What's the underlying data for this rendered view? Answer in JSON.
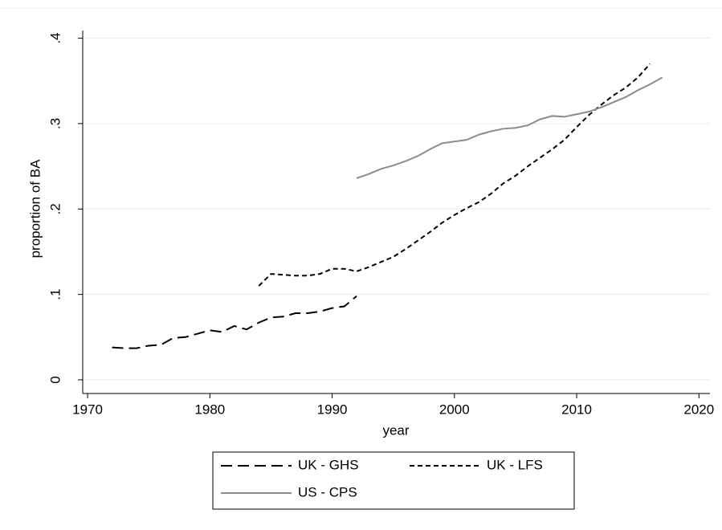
{
  "chart_data": {
    "type": "line",
    "x_label": "year",
    "y_label": "proportion of BA",
    "xlim": [
      1969.6,
      2020.9
    ],
    "xticks": [
      1970,
      1980,
      1990,
      2000,
      2010,
      2020
    ],
    "ylim": [
      -0.016,
      0.409
    ],
    "yticks": [
      0,
      {
        "value": 0.1,
        "label": ".1"
      },
      {
        "value": 0.2,
        "label": ".2"
      },
      {
        "value": 0.3,
        "label": ".3"
      },
      {
        "value": 0.4,
        "label": ".4"
      }
    ],
    "grid": true,
    "series": [
      {
        "name": "UK - GHS",
        "color": "#000000",
        "dash": "long",
        "x": [
          1972,
          1973,
          1974,
          1975,
          1976,
          1977,
          1978,
          1979,
          1980,
          1981,
          1982,
          1983,
          1984,
          1985,
          1986,
          1987,
          1988,
          1989,
          1990,
          1991,
          1992
        ],
        "values": [
          0.038,
          0.037,
          0.037,
          0.04,
          0.041,
          0.049,
          0.05,
          0.054,
          0.058,
          0.056,
          0.063,
          0.059,
          0.067,
          0.073,
          0.074,
          0.078,
          0.078,
          0.08,
          0.084,
          0.086,
          0.098
        ]
      },
      {
        "name": "UK - LFS",
        "color": "#000000",
        "dash": "short",
        "x": [
          1984,
          1985,
          1986,
          1987,
          1988,
          1989,
          1990,
          1991,
          1992,
          1993,
          1994,
          1995,
          1996,
          1997,
          1998,
          1999,
          2000,
          2001,
          2002,
          2003,
          2004,
          2005,
          2006,
          2007,
          2008,
          2009,
          2010,
          2011,
          2012,
          2013,
          2014,
          2015,
          2016
        ],
        "values": [
          0.11,
          0.124,
          0.123,
          0.122,
          0.122,
          0.124,
          0.13,
          0.13,
          0.127,
          0.132,
          0.138,
          0.144,
          0.153,
          0.163,
          0.173,
          0.184,
          0.193,
          0.201,
          0.208,
          0.218,
          0.23,
          0.239,
          0.25,
          0.26,
          0.27,
          0.281,
          0.296,
          0.31,
          0.322,
          0.333,
          0.342,
          0.354,
          0.37
        ]
      },
      {
        "name": "US - CPS",
        "color": "#8c8c8c",
        "dash": "solid",
        "x": [
          1992,
          1993,
          1994,
          1995,
          1996,
          1997,
          1998,
          1999,
          2000,
          2001,
          2002,
          2003,
          2004,
          2005,
          2006,
          2007,
          2008,
          2009,
          2010,
          2011,
          2012,
          2013,
          2014,
          2015,
          2016,
          2017
        ],
        "values": [
          0.236,
          0.241,
          0.247,
          0.251,
          0.256,
          0.262,
          0.27,
          0.277,
          0.279,
          0.281,
          0.287,
          0.291,
          0.294,
          0.295,
          0.298,
          0.305,
          0.309,
          0.308,
          0.311,
          0.314,
          0.319,
          0.325,
          0.331,
          0.339,
          0.346,
          0.354
        ]
      }
    ]
  }
}
